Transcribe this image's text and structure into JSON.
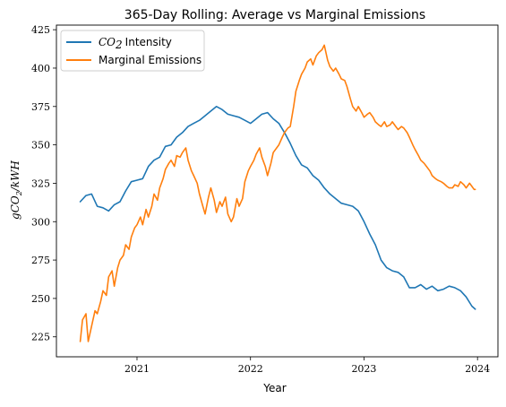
{
  "chart_data": {
    "type": "line",
    "title": "365-Day Rolling:  Average vs Marginal Emissions",
    "xlabel": "Year",
    "ylabel": "gCO2/kWH",
    "xlim": [
      2020.29,
      2024.18
    ],
    "ylim": [
      212,
      428
    ],
    "x_ticks": [
      2021,
      2022,
      2023,
      2024
    ],
    "x_tick_labels": [
      "2021",
      "2022",
      "2023",
      "2024"
    ],
    "y_ticks": [
      225,
      250,
      275,
      300,
      325,
      350,
      375,
      400,
      425
    ],
    "y_tick_labels": [
      "225",
      "250",
      "275",
      "300",
      "325",
      "350",
      "375",
      "400",
      "425"
    ],
    "legend_position": "top-left",
    "grid": false,
    "series": [
      {
        "name": "CO2 Intensity",
        "name_parts": {
          "prefix": "CO",
          "sub": "2",
          "suffix": "Intensity"
        },
        "color": "#1f77b4",
        "x": [
          2020.5,
          2020.55,
          2020.6,
          2020.65,
          2020.7,
          2020.75,
          2020.8,
          2020.85,
          2020.9,
          2020.95,
          2021.0,
          2021.05,
          2021.1,
          2021.15,
          2021.2,
          2021.25,
          2021.3,
          2021.35,
          2021.4,
          2021.45,
          2021.5,
          2021.55,
          2021.6,
          2021.65,
          2021.7,
          2021.75,
          2021.8,
          2021.85,
          2021.9,
          2021.95,
          2022.0,
          2022.05,
          2022.1,
          2022.15,
          2022.2,
          2022.25,
          2022.3,
          2022.35,
          2022.4,
          2022.45,
          2022.5,
          2022.55,
          2022.6,
          2022.65,
          2022.7,
          2022.75,
          2022.8,
          2022.85,
          2022.9,
          2022.95,
          2023.0,
          2023.05,
          2023.1,
          2023.15,
          2023.2,
          2023.25,
          2023.3,
          2023.35,
          2023.4,
          2023.45,
          2023.5,
          2023.55,
          2023.6,
          2023.65,
          2023.7,
          2023.75,
          2023.8,
          2023.85,
          2023.9,
          2023.95,
          2023.98
        ],
        "values": [
          313,
          317,
          318,
          310,
          309,
          307,
          311,
          313,
          320,
          326,
          327,
          328,
          336,
          340,
          342,
          349,
          350,
          355,
          358,
          362,
          364,
          366,
          369,
          372,
          375,
          373,
          370,
          369,
          368,
          366,
          364,
          367,
          370,
          371,
          367,
          364,
          358,
          351,
          343,
          337,
          335,
          330,
          327,
          322,
          318,
          315,
          312,
          311,
          310,
          307,
          300,
          292,
          285,
          275,
          270,
          268,
          267,
          264,
          257,
          257,
          259,
          256,
          258,
          255,
          256,
          258,
          257,
          255,
          251,
          245,
          243
        ]
      },
      {
        "name": "Marginal Emissions",
        "color": "#ff7f0e",
        "x": [
          2020.5,
          2020.52,
          2020.55,
          2020.57,
          2020.6,
          2020.63,
          2020.65,
          2020.68,
          2020.7,
          2020.73,
          2020.75,
          2020.78,
          2020.8,
          2020.83,
          2020.85,
          2020.88,
          2020.9,
          2020.93,
          2020.95,
          2020.98,
          2021.0,
          2021.03,
          2021.05,
          2021.08,
          2021.1,
          2021.13,
          2021.15,
          2021.18,
          2021.2,
          2021.23,
          2021.25,
          2021.28,
          2021.3,
          2021.33,
          2021.35,
          2021.38,
          2021.4,
          2021.43,
          2021.45,
          2021.48,
          2021.5,
          2021.53,
          2021.55,
          2021.58,
          2021.6,
          2021.63,
          2021.65,
          2021.68,
          2021.7,
          2021.73,
          2021.75,
          2021.78,
          2021.8,
          2021.83,
          2021.85,
          2021.88,
          2021.9,
          2021.93,
          2021.95,
          2021.98,
          2022.0,
          2022.03,
          2022.05,
          2022.08,
          2022.1,
          2022.13,
          2022.15,
          2022.18,
          2022.2,
          2022.23,
          2022.25,
          2022.28,
          2022.3,
          2022.33,
          2022.35,
          2022.38,
          2022.4,
          2022.43,
          2022.45,
          2022.48,
          2022.5,
          2022.53,
          2022.55,
          2022.58,
          2022.6,
          2022.63,
          2022.65,
          2022.68,
          2022.7,
          2022.73,
          2022.75,
          2022.78,
          2022.8,
          2022.83,
          2022.85,
          2022.88,
          2022.9,
          2022.93,
          2022.95,
          2022.98,
          2023.0,
          2023.03,
          2023.05,
          2023.08,
          2023.1,
          2023.13,
          2023.15,
          2023.18,
          2023.2,
          2023.23,
          2023.25,
          2023.28,
          2023.3,
          2023.33,
          2023.35,
          2023.38,
          2023.4,
          2023.43,
          2023.45,
          2023.48,
          2023.5,
          2023.53,
          2023.55,
          2023.58,
          2023.6,
          2023.63,
          2023.65,
          2023.68,
          2023.7,
          2023.73,
          2023.75,
          2023.78,
          2023.8,
          2023.83,
          2023.85,
          2023.88,
          2023.9,
          2023.93,
          2023.95,
          2023.97,
          2023.98
        ],
        "values": [
          222,
          236,
          240,
          222,
          232,
          242,
          240,
          248,
          255,
          252,
          264,
          268,
          258,
          270,
          275,
          278,
          285,
          282,
          290,
          296,
          298,
          303,
          298,
          308,
          303,
          310,
          318,
          314,
          322,
          328,
          334,
          338,
          340,
          336,
          343,
          342,
          345,
          348,
          340,
          333,
          330,
          325,
          318,
          310,
          305,
          316,
          322,
          314,
          306,
          313,
          310,
          316,
          305,
          300,
          303,
          315,
          310,
          315,
          326,
          333,
          336,
          340,
          344,
          348,
          342,
          336,
          330,
          338,
          345,
          348,
          350,
          355,
          358,
          361,
          362,
          375,
          385,
          392,
          396,
          400,
          404,
          406,
          402,
          408,
          410,
          412,
          415,
          405,
          401,
          398,
          400,
          396,
          393,
          392,
          388,
          380,
          375,
          372,
          375,
          371,
          368,
          370,
          371,
          368,
          365,
          363,
          362,
          365,
          362,
          363,
          365,
          362,
          360,
          362,
          361,
          358,
          355,
          350,
          347,
          343,
          340,
          338,
          336,
          333,
          330,
          328,
          327,
          326,
          325,
          323,
          322,
          322,
          324,
          323,
          326,
          324,
          322,
          325,
          323,
          321,
          321
        ]
      }
    ]
  }
}
